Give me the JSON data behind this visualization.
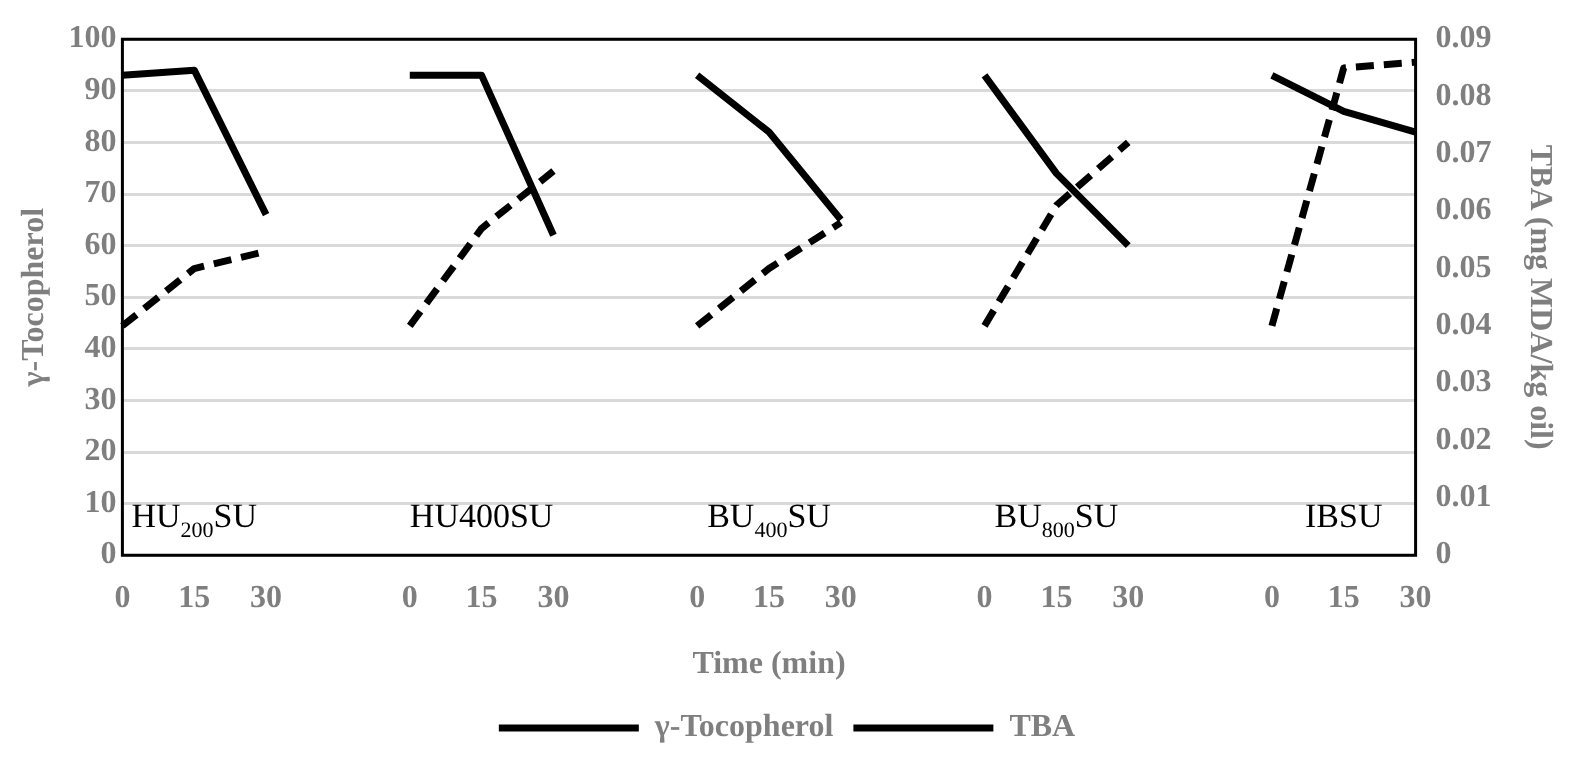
{
  "chart_data": {
    "type": "line",
    "xlabel": "Time (min)",
    "ylabel": "γ-Tocopherol",
    "y2label": "TBA (mg MDA/kg oil)",
    "categories": [
      "0",
      "15",
      "30",
      null,
      "0",
      "15",
      "30",
      null,
      "0",
      "15",
      "30",
      null,
      "0",
      "15",
      "30",
      null,
      "0",
      "15",
      "30"
    ],
    "series": [
      {
        "name": "γ-Tocopherol",
        "color": "#000000",
        "line_style": "solid",
        "values": [
          93,
          94,
          66,
          null,
          93,
          93,
          62,
          null,
          93,
          82,
          65,
          null,
          93,
          74,
          60,
          null,
          93,
          86,
          82
        ]
      },
      {
        "name": "TBA",
        "color": "#000000",
        "line_style": "dashed",
        "axis": "y2",
        "values": [
          0.04,
          0.05,
          0.053,
          null,
          0.04,
          0.057,
          0.067,
          null,
          0.04,
          0.05,
          0.058,
          null,
          0.04,
          0.061,
          0.072,
          null,
          0.04,
          0.085,
          0.086
        ]
      }
    ],
    "ylim": [
      0,
      100
    ],
    "yticks": [
      0,
      10,
      20,
      30,
      40,
      50,
      60,
      70,
      80,
      90,
      100
    ],
    "y2lim": [
      0,
      0.09
    ],
    "y2ticks": [
      0,
      0.01,
      0.02,
      0.03,
      0.04,
      0.05,
      0.06,
      0.07,
      0.08,
      0.09
    ],
    "annotations": [
      "HU$_{200}$SU",
      "HU400SU",
      "BU$_{400}$SU",
      "BU$_{800}$SU",
      "IBSU"
    ],
    "grid": "y",
    "legend": "bottom",
    "marker": "none"
  }
}
